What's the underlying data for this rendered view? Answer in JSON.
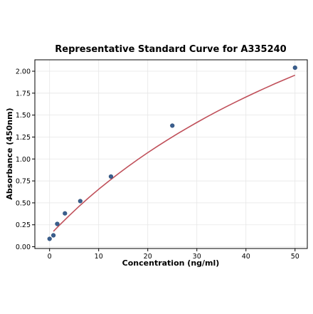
{
  "chart_data": {
    "type": "scatter",
    "title": "Representative Standard Curve for A335240",
    "xlabel": "Concentration (ng/ml)",
    "ylabel": "Absorbance (450nm)",
    "xlim": [
      -3,
      52.5
    ],
    "ylim": [
      -0.02,
      2.13
    ],
    "xticks": [
      0,
      10,
      20,
      30,
      40,
      50
    ],
    "xtick_labels": [
      "0",
      "10",
      "20",
      "30",
      "40",
      "50"
    ],
    "yticks": [
      0.0,
      0.25,
      0.5,
      0.75,
      1.0,
      1.25,
      1.5,
      1.75,
      2.0
    ],
    "ytick_labels": [
      "0.00",
      "0.25",
      "0.50",
      "0.75",
      "1.00",
      "1.25",
      "1.50",
      "1.75",
      "2.00"
    ],
    "grid": true,
    "series": [
      {
        "kind": "points",
        "x": [
          0,
          0.78,
          1.56,
          3.125,
          6.25,
          12.5,
          25,
          50
        ],
        "y": [
          0.09,
          0.13,
          0.26,
          0.38,
          0.52,
          0.8,
          1.38,
          2.04
        ],
        "color": "#3a5f8f"
      },
      {
        "kind": "fit-curve",
        "x": [
          0.78,
          2,
          4,
          6,
          8,
          10,
          12,
          14,
          16,
          18,
          20,
          22,
          24,
          26,
          28,
          30,
          32,
          34,
          36,
          38,
          40,
          42,
          44,
          46,
          48,
          50
        ],
        "y": [
          0.175,
          0.245,
          0.355,
          0.46,
          0.56,
          0.655,
          0.745,
          0.832,
          0.915,
          0.995,
          1.072,
          1.146,
          1.217,
          1.286,
          1.352,
          1.416,
          1.478,
          1.538,
          1.596,
          1.652,
          1.706,
          1.759,
          1.81,
          1.86,
          1.908,
          1.955
        ],
        "color": "#c0505a"
      }
    ]
  }
}
